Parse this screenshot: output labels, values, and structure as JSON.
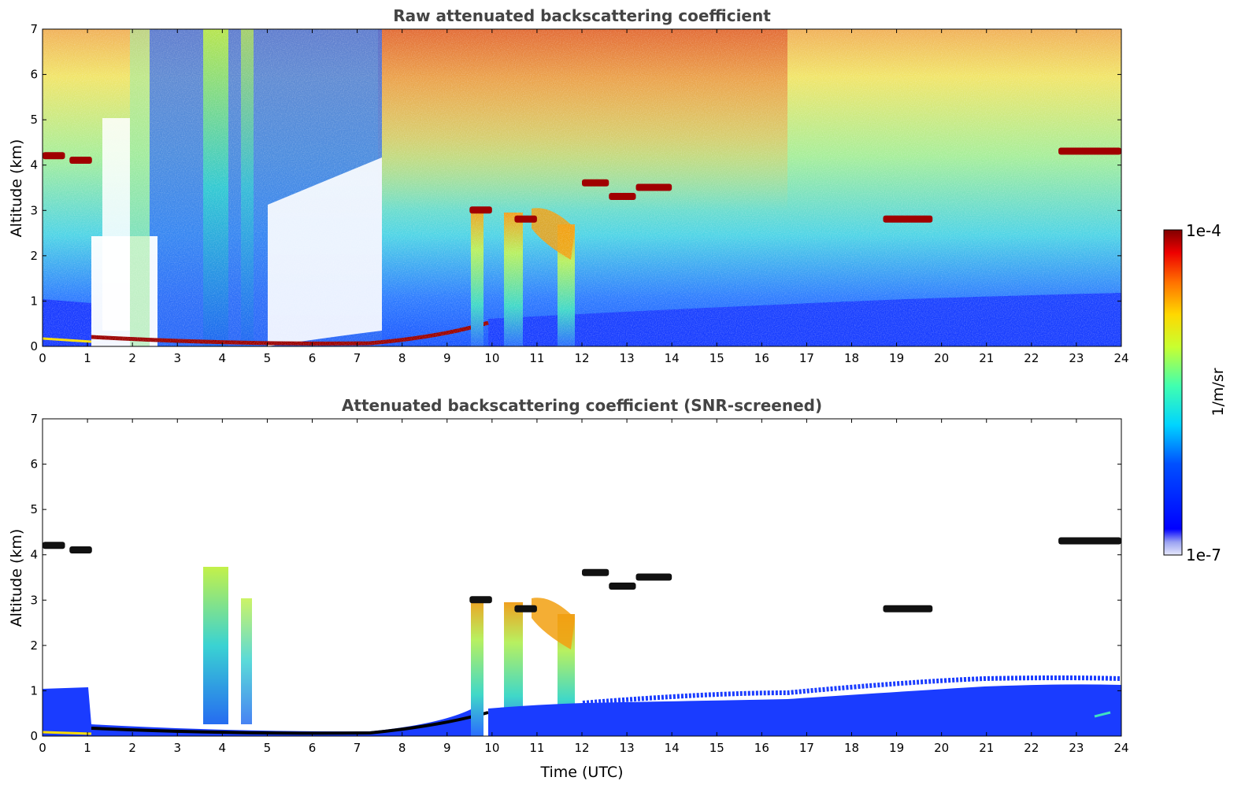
{
  "figure": {
    "colorbar": {
      "min_label": "1e-7",
      "max_label": "1e-4",
      "label": "1/m/sr",
      "scale": "log",
      "colormap": "jet"
    }
  },
  "chart_data": [
    {
      "type": "heatmap",
      "title": "Raw attenuated backscattering coefficient",
      "xlabel": "",
      "ylabel": "Altitude (km)",
      "xlim": [
        0,
        24
      ],
      "ylim": [
        0,
        7
      ],
      "x_ticks": [
        0,
        1,
        2,
        3,
        4,
        5,
        6,
        7,
        8,
        9,
        10,
        11,
        12,
        13,
        14,
        15,
        16,
        17,
        18,
        19,
        20,
        21,
        22,
        23,
        24
      ],
      "y_ticks": [
        0,
        1,
        2,
        3,
        4,
        5,
        6,
        7
      ],
      "color_range": [
        1e-07,
        0.0001
      ],
      "features": {
        "cloud_layers": [
          {
            "t": [
              0.0,
              0.5
            ],
            "alt": 4.2
          },
          {
            "t": [
              0.6,
              1.1
            ],
            "alt": 4.1
          },
          {
            "t": [
              9.5,
              10.0
            ],
            "alt": 3.0
          },
          {
            "t": [
              10.5,
              11.0
            ],
            "alt": 2.8
          },
          {
            "t": [
              12.0,
              12.6
            ],
            "alt": 3.6
          },
          {
            "t": [
              12.6,
              13.2
            ],
            "alt": 3.3
          },
          {
            "t": [
              13.2,
              14.0
            ],
            "alt": 3.5
          },
          {
            "t": [
              18.7,
              19.8
            ],
            "alt": 2.8
          },
          {
            "t": [
              22.6,
              24.0
            ],
            "alt": 4.3
          }
        ],
        "boundary_layer_base": [
          {
            "t": 1.1,
            "alt": 0.2
          },
          {
            "t": 3.0,
            "alt": 0.1
          },
          {
            "t": 5.0,
            "alt": 0.1
          },
          {
            "t": 7.0,
            "alt": 0.1
          },
          {
            "t": 8.0,
            "alt": 0.2
          },
          {
            "t": 9.0,
            "alt": 0.35
          },
          {
            "t": 9.5,
            "alt": 0.5
          }
        ]
      }
    },
    {
      "type": "heatmap",
      "title": "Attenuated backscattering coefficient (SNR-screened)",
      "xlabel": "Time (UTC)",
      "ylabel": "Altitude (km)",
      "xlim": [
        0,
        24
      ],
      "ylim": [
        0,
        7
      ],
      "x_ticks": [
        0,
        1,
        2,
        3,
        4,
        5,
        6,
        7,
        8,
        9,
        10,
        11,
        12,
        13,
        14,
        15,
        16,
        17,
        18,
        19,
        20,
        21,
        22,
        23,
        24
      ],
      "y_ticks": [
        0,
        1,
        2,
        3,
        4,
        5,
        6,
        7
      ],
      "color_range": [
        1e-07,
        0.0001
      ]
    }
  ]
}
